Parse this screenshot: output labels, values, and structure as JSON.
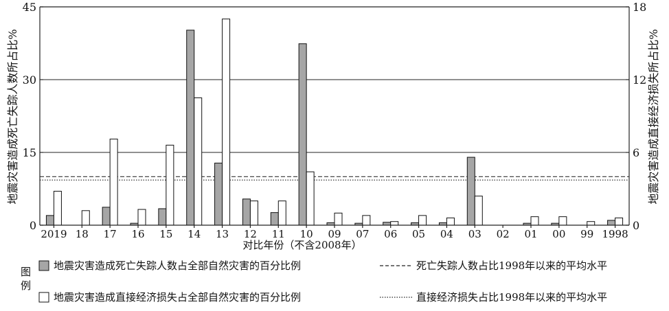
{
  "chart_data": {
    "type": "bar",
    "categories": [
      "2019",
      "18",
      "17",
      "16",
      "15",
      "14",
      "13",
      "12",
      "11",
      "10",
      "09",
      "07",
      "06",
      "05",
      "04",
      "03",
      "02",
      "01",
      "00",
      "99",
      "1998"
    ],
    "series": [
      {
        "name": "地震灾害造成死亡失踪人数占全部自然灾害的百分比例",
        "axis": "left",
        "color": "#a6a6a6",
        "values": [
          2.0,
          0,
          3.7,
          0.4,
          3.4,
          40.2,
          12.8,
          5.4,
          2.6,
          37.4,
          0.5,
          0.4,
          0.6,
          0.5,
          0.5,
          14.0,
          0,
          0.4,
          0.4,
          0,
          1.0
        ]
      },
      {
        "name": "地震灾害造成直接经济损失占全部自然灾害的百分比例",
        "axis": "right",
        "color": "#ffffff",
        "values": [
          2.8,
          1.2,
          7.1,
          1.3,
          6.6,
          10.5,
          17.0,
          2.0,
          2.0,
          4.4,
          1.0,
          0.8,
          0.3,
          0.8,
          0.6,
          2.4,
          0,
          0.7,
          0.7,
          0.3,
          0.6
        ]
      }
    ],
    "ylabel": "地震灾害造成死亡失踪人数所占比%",
    "y2label": "地震灾害造成直接经济损失所占比%",
    "xlabel": "对比年份（不含2008年）",
    "ylim": [
      0,
      45
    ],
    "y2lim": [
      0,
      18
    ],
    "yticks": [
      "0",
      "15",
      "30",
      "45"
    ],
    "y2ticks": [
      "0",
      "6",
      "12",
      "18"
    ],
    "grid": true,
    "reference_lines": [
      {
        "label": "死亡失踪人数占比1998年以来的平均水平",
        "axis": "left",
        "value": 10.0,
        "style": "dashed"
      },
      {
        "label": "直接经济损失占比1998年以来的平均水平",
        "axis": "left",
        "value": 9.3,
        "style": "dotted"
      }
    ],
    "legend": {
      "title": "图例",
      "placement": "bottom"
    }
  }
}
